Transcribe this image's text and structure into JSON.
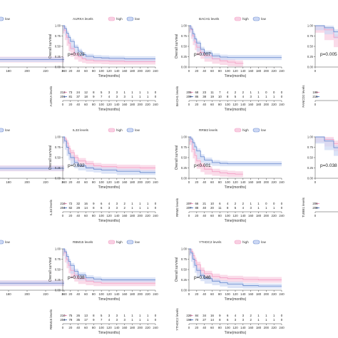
{
  "figure": {
    "legend_high": "high",
    "legend_low": "low",
    "ylabel": "Overall survival",
    "xlabel": "Time(months)",
    "colors": {
      "high": "#f4a3c7",
      "low": "#6f8fd1",
      "high_band": "#f8cfe2",
      "low_band": "#cdd8f4"
    }
  },
  "chart_data": [
    {
      "type": "line",
      "legend_title": "",
      "pvalue": "",
      "risk_label": "",
      "ylabel": "",
      "xlabel": "",
      "x_ticks": [
        "160",
        "180",
        "200",
        "220",
        "240"
      ],
      "y_ticks": [],
      "risk_rows": [],
      "series": [
        {
          "name": "high",
          "x": [
            140,
            240
          ],
          "y": [
            0.18,
            0.18
          ]
        },
        {
          "name": "low",
          "x": [
            140,
            240
          ],
          "y": [
            0.18,
            0.18
          ]
        }
      ],
      "xlim": [
        140,
        240
      ],
      "ylim": [
        0,
        1
      ]
    },
    {
      "type": "line",
      "legend_title": "AURKA levels",
      "pvalue": "p=0.023",
      "risk_label": "AURKA levels",
      "ylabel": "Overall survival",
      "xlabel": "Time(months)",
      "x_ticks": [
        "0",
        "20",
        "40",
        "60",
        "80",
        "100",
        "120",
        "140",
        "160",
        "180",
        "200",
        "220",
        "240"
      ],
      "y_ticks": [
        "0.00",
        "0.25",
        "0.50",
        "0.75",
        "1.00"
      ],
      "risk_rows": [
        [
          "213",
          "73",
          "24",
          "12",
          "8",
          "5",
          "3",
          "3",
          "1",
          "1",
          "1",
          "1",
          "0"
        ],
        [
          "201",
          "81",
          "37",
          "18",
          "9",
          "7",
          "4",
          "3",
          "3",
          "1",
          "1",
          "1",
          "0"
        ]
      ],
      "series": [
        {
          "name": "high",
          "x": [
            0,
            5,
            10,
            15,
            20,
            30,
            40,
            50,
            60,
            80,
            100,
            120,
            160,
            240
          ],
          "y": [
            1.0,
            0.88,
            0.72,
            0.58,
            0.45,
            0.32,
            0.25,
            0.2,
            0.17,
            0.15,
            0.15,
            0.14,
            0.13,
            0.13
          ]
        },
        {
          "name": "low",
          "x": [
            0,
            5,
            10,
            15,
            20,
            30,
            40,
            50,
            60,
            80,
            100,
            120,
            160,
            240
          ],
          "y": [
            1.0,
            0.93,
            0.82,
            0.72,
            0.62,
            0.48,
            0.38,
            0.3,
            0.26,
            0.23,
            0.22,
            0.21,
            0.2,
            0.2
          ]
        }
      ],
      "xlim": [
        0,
        240
      ],
      "ylim": [
        0,
        1
      ]
    },
    {
      "type": "line",
      "legend_title": "BACH1 levels",
      "pvalue": "p=0.007",
      "risk_label": "BACH1 levels",
      "ylabel": "Overall survival",
      "xlabel": "Time(months)",
      "x_ticks": [
        "0",
        "20",
        "40",
        "60",
        "80",
        "100",
        "120",
        "140",
        "160",
        "180",
        "200",
        "220",
        "240"
      ],
      "y_ticks": [
        "0.00",
        "0.25",
        "0.50",
        "0.75",
        "1.00"
      ],
      "risk_rows": [
        [
          "205",
          "68",
          "23",
          "11",
          "7",
          "4",
          "2",
          "2",
          "1",
          "1",
          "0",
          "0",
          "0"
        ],
        [
          "209",
          "86",
          "38",
          "19",
          "10",
          "8",
          "5",
          "4",
          "3",
          "1",
          "1",
          "1",
          "0"
        ]
      ],
      "series": [
        {
          "name": "high",
          "x": [
            0,
            5,
            10,
            15,
            20,
            30,
            40,
            60,
            80,
            100,
            120,
            140
          ],
          "y": [
            1.0,
            0.9,
            0.75,
            0.6,
            0.48,
            0.35,
            0.27,
            0.2,
            0.15,
            0.12,
            0.09,
            0.08
          ]
        },
        {
          "name": "low",
          "x": [
            0,
            5,
            10,
            15,
            20,
            30,
            40,
            60,
            80,
            100,
            140,
            240
          ],
          "y": [
            1.0,
            0.92,
            0.8,
            0.68,
            0.58,
            0.43,
            0.34,
            0.27,
            0.24,
            0.23,
            0.23,
            0.23
          ]
        }
      ],
      "xlim": [
        0,
        240
      ],
      "ylim": [
        0,
        1
      ]
    },
    {
      "type": "line",
      "legend_title": "",
      "pvalue": "p=0.005",
      "risk_label": "FANCD2 levels",
      "ylabel": "",
      "xlabel": "",
      "x_ticks": [
        "0",
        "20",
        "40"
      ],
      "y_ticks": [
        "0.00",
        "0.25",
        "0.50",
        "0.75",
        "1.00"
      ],
      "risk_rows": [
        [
          "199",
          "80",
          "27"
        ],
        [
          "215",
          "74",
          "34"
        ]
      ],
      "series": [
        {
          "name": "high",
          "x": [
            0,
            5,
            10,
            15,
            20,
            30,
            40,
            50
          ],
          "y": [
            1.0,
            0.9,
            0.72,
            0.55,
            0.42,
            0.3,
            0.22,
            0.18
          ]
        },
        {
          "name": "low",
          "x": [
            0,
            5,
            10,
            15,
            20,
            30,
            40,
            50
          ],
          "y": [
            1.0,
            0.95,
            0.85,
            0.75,
            0.65,
            0.52,
            0.42,
            0.36
          ]
        }
      ],
      "xlim": [
        0,
        50
      ],
      "ylim": [
        0,
        1
      ]
    },
    {
      "type": "line",
      "legend_title": "",
      "pvalue": "",
      "risk_label": "",
      "ylabel": "",
      "xlabel": "",
      "x_ticks": [
        "160",
        "180",
        "200",
        "220",
        "240"
      ],
      "y_ticks": [],
      "risk_rows": [],
      "series": [
        {
          "name": "high",
          "x": [
            140,
            240
          ],
          "y": [
            0.24,
            0.24
          ]
        },
        {
          "name": "low",
          "x": [
            140,
            240
          ],
          "y": [
            0.24,
            0.24
          ]
        }
      ],
      "xlim": [
        140,
        240
      ],
      "ylim": [
        0,
        1
      ]
    },
    {
      "type": "line",
      "legend_title": "IL33 levels",
      "pvalue": "p=0.032",
      "risk_label": "IL33 levels",
      "ylabel": "Overall survival",
      "xlabel": "Time(months)",
      "x_ticks": [
        "0",
        "20",
        "40",
        "60",
        "80",
        "100",
        "120",
        "140",
        "160",
        "180",
        "200",
        "220",
        "240"
      ],
      "y_ticks": [
        "0.00",
        "0.25",
        "0.50",
        "0.75",
        "1.00"
      ],
      "risk_rows": [
        [
          "210",
          "72",
          "32",
          "16",
          "9",
          "6",
          "4",
          "3",
          "2",
          "1",
          "1",
          "1",
          "0"
        ],
        [
          "204",
          "82",
          "29",
          "14",
          "8",
          "6",
          "3",
          "3",
          "2",
          "1",
          "1",
          "1",
          "0"
        ]
      ],
      "series": [
        {
          "name": "high",
          "x": [
            0,
            5,
            10,
            15,
            20,
            30,
            40,
            60,
            80,
            100,
            140,
            200,
            240
          ],
          "y": [
            1.0,
            0.95,
            0.85,
            0.72,
            0.62,
            0.5,
            0.42,
            0.35,
            0.3,
            0.28,
            0.26,
            0.25,
            0.25
          ]
        },
        {
          "name": "low",
          "x": [
            0,
            5,
            10,
            15,
            20,
            30,
            40,
            60,
            80,
            100,
            140,
            200,
            240
          ],
          "y": [
            1.0,
            0.9,
            0.75,
            0.6,
            0.5,
            0.38,
            0.3,
            0.25,
            0.22,
            0.2,
            0.17,
            0.14,
            0.14
          ]
        }
      ],
      "xlim": [
        0,
        240
      ],
      "ylim": [
        0,
        1
      ]
    },
    {
      "type": "line",
      "legend_title": "RRM2 levels",
      "pvalue": "p<0.001",
      "risk_label": "RRM2 levels",
      "ylabel": "Overall survival",
      "xlabel": "Time(months)",
      "x_ticks": [
        "0",
        "20",
        "40",
        "60",
        "80",
        "100",
        "120",
        "140",
        "160",
        "180",
        "200",
        "220",
        "240"
      ],
      "y_ticks": [
        "0.00",
        "0.25",
        "0.50",
        "0.75",
        "1.00"
      ],
      "risk_rows": [
        [
          "207",
          "66",
          "21",
          "10",
          "6",
          "4",
          "2",
          "2",
          "1",
          "1",
          "0",
          "0",
          "0"
        ],
        [
          "207",
          "88",
          "40",
          "20",
          "11",
          "8",
          "5",
          "4",
          "3",
          "1",
          "1",
          "1",
          "0"
        ]
      ],
      "series": [
        {
          "name": "high",
          "x": [
            0,
            5,
            10,
            15,
            20,
            30,
            40,
            60,
            80,
            100,
            120,
            140
          ],
          "y": [
            1.0,
            0.88,
            0.7,
            0.55,
            0.42,
            0.3,
            0.22,
            0.16,
            0.13,
            0.11,
            0.1,
            0.1
          ]
        },
        {
          "name": "low",
          "x": [
            0,
            5,
            10,
            15,
            20,
            30,
            40,
            60,
            80,
            100,
            140,
            240
          ],
          "y": [
            1.0,
            0.95,
            0.86,
            0.76,
            0.66,
            0.52,
            0.44,
            0.38,
            0.36,
            0.35,
            0.35,
            0.35
          ]
        }
      ],
      "xlim": [
        0,
        240
      ],
      "ylim": [
        0,
        1
      ]
    },
    {
      "type": "line",
      "legend_title": "",
      "pvalue": "p=0.038",
      "risk_label": "TUBB1 levels",
      "ylabel": "",
      "xlabel": "",
      "x_ticks": [
        "0",
        "20",
        "40"
      ],
      "y_ticks": [
        "0.00",
        "0.25",
        "0.50",
        "0.75",
        "1.00"
      ],
      "risk_rows": [
        [
          "206",
          "141",
          "67"
        ],
        [
          "208",
          "75",
          "33"
        ]
      ],
      "series": [
        {
          "name": "high",
          "x": [
            0,
            5,
            10,
            15,
            20,
            30,
            40,
            50
          ],
          "y": [
            1.0,
            0.94,
            0.84,
            0.72,
            0.62,
            0.5,
            0.42,
            0.38
          ]
        },
        {
          "name": "low",
          "x": [
            0,
            5,
            10,
            15,
            20,
            30,
            40,
            50
          ],
          "y": [
            1.0,
            0.9,
            0.74,
            0.6,
            0.48,
            0.36,
            0.28,
            0.22
          ]
        }
      ],
      "xlim": [
        0,
        50
      ],
      "ylim": [
        0,
        1
      ]
    },
    {
      "type": "line",
      "legend_title": "",
      "pvalue": "",
      "risk_label": "",
      "ylabel": "",
      "xlabel": "",
      "x_ticks": [
        "160",
        "180",
        "200",
        "220",
        "240"
      ],
      "y_ticks": [],
      "risk_rows": [],
      "series": [
        {
          "name": "high",
          "x": [
            140,
            240
          ],
          "y": [
            0.17,
            0.17
          ]
        },
        {
          "name": "low",
          "x": [
            140,
            240
          ],
          "y": [
            0.17,
            0.17
          ]
        }
      ],
      "xlim": [
        140,
        240
      ],
      "ylim": [
        0,
        1
      ]
    },
    {
      "type": "line",
      "legend_title": "RBM15 levels",
      "pvalue": "p=0.038",
      "risk_label": "RBM15 levels",
      "ylabel": "Overall survival",
      "xlabel": "Time(months)",
      "x_ticks": [
        "0",
        "20",
        "40",
        "60",
        "80",
        "100",
        "120",
        "140",
        "160",
        "180",
        "200",
        "220",
        "240"
      ],
      "y_ticks": [
        "0.00",
        "0.25",
        "0.50",
        "0.75",
        "1.00"
      ],
      "risk_rows": [
        [
          "210",
          "75",
          "26",
          "13",
          "8",
          "5",
          "3",
          "3",
          "1",
          "1",
          "1",
          "1",
          "0"
        ],
        [
          "204",
          "79",
          "35",
          "17",
          "9",
          "7",
          "4",
          "3",
          "3",
          "1",
          "1",
          "1",
          "0"
        ]
      ],
      "series": [
        {
          "name": "high",
          "x": [
            0,
            5,
            10,
            15,
            20,
            30,
            40,
            60,
            80,
            100,
            140,
            240
          ],
          "y": [
            1.0,
            0.9,
            0.74,
            0.6,
            0.48,
            0.36,
            0.28,
            0.22,
            0.19,
            0.17,
            0.17,
            0.17
          ]
        },
        {
          "name": "low",
          "x": [
            0,
            5,
            10,
            15,
            20,
            30,
            40,
            60,
            80,
            100,
            140,
            240
          ],
          "y": [
            1.0,
            0.93,
            0.82,
            0.7,
            0.6,
            0.46,
            0.37,
            0.3,
            0.27,
            0.25,
            0.25,
            0.25
          ]
        }
      ],
      "xlim": [
        0,
        240
      ],
      "ylim": [
        0,
        1
      ]
    },
    {
      "type": "line",
      "legend_title": "YTHDC2 levels",
      "pvalue": "p=0.046",
      "risk_label": "YTHDC2 levels",
      "ylabel": "Overall survival",
      "xlabel": "Time(months)",
      "x_ticks": [
        "0",
        "20",
        "40",
        "60",
        "80",
        "100",
        "120",
        "140",
        "160",
        "180",
        "200",
        "220",
        "240"
      ],
      "y_ticks": [
        "0.00",
        "0.25",
        "0.50",
        "0.75",
        "1.00"
      ],
      "risk_rows": [
        [
          "220",
          "84",
          "34",
          "16",
          "9",
          "6",
          "4",
          "3",
          "2",
          "1",
          "1",
          "1",
          "0"
        ],
        [
          "194",
          "70",
          "27",
          "14",
          "8",
          "6",
          "3",
          "3",
          "2",
          "1",
          "1",
          "1",
          "0"
        ]
      ],
      "series": [
        {
          "name": "high",
          "x": [
            0,
            5,
            10,
            15,
            20,
            30,
            40,
            60,
            80,
            100,
            140,
            180,
            240
          ],
          "y": [
            1.0,
            0.94,
            0.84,
            0.72,
            0.62,
            0.48,
            0.4,
            0.33,
            0.3,
            0.28,
            0.26,
            0.25,
            0.25
          ]
        },
        {
          "name": "low",
          "x": [
            0,
            5,
            10,
            15,
            20,
            30,
            40,
            60,
            80,
            100,
            140,
            180,
            240
          ],
          "y": [
            1.0,
            0.9,
            0.75,
            0.6,
            0.48,
            0.36,
            0.28,
            0.22,
            0.18,
            0.15,
            0.11,
            0.1,
            0.1
          ]
        }
      ],
      "xlim": [
        0,
        240
      ],
      "ylim": [
        0,
        1
      ]
    }
  ]
}
